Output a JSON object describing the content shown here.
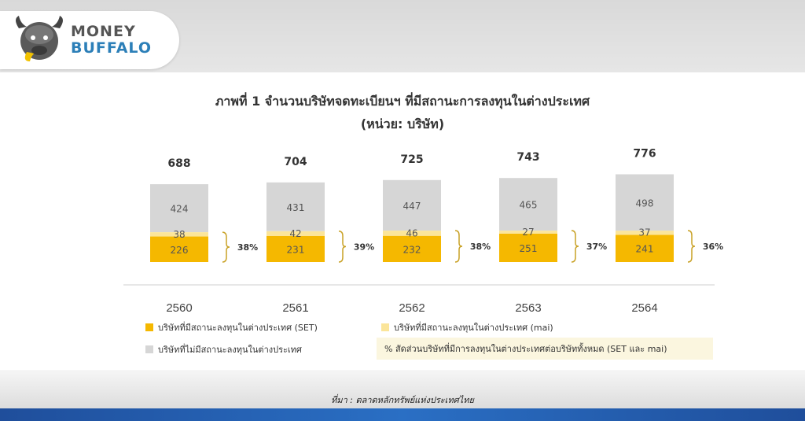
{
  "brand": {
    "line1": "MONEY",
    "line2": "BUFFALO"
  },
  "footer": {
    "source": "ที่มา : ตลาดหลักทรัพย์แห่งประเทศไทย"
  },
  "colors": {
    "set": "#f5b800",
    "mai": "#fbe59a",
    "non": "#d6d6d6",
    "pct": "#c9a227",
    "blue": "#2563b0"
  },
  "chart_data": {
    "type": "bar",
    "title": "ภาพที่ 1 จำนวนบริษัทจดทะเบียนฯ ที่มีสถานะการลงทุนในต่างประเทศ",
    "subtitle": "(หน่วย: บริษัท)",
    "categories": [
      "2560",
      "2561",
      "2562",
      "2563",
      "2564"
    ],
    "totals": [
      688,
      704,
      725,
      743,
      776
    ],
    "series": [
      {
        "name": "บริษัทที่มีสถานะลงทุนในต่างประเทศ (SET)",
        "values": [
          226,
          231,
          232,
          251,
          241
        ]
      },
      {
        "name": "บริษัทที่มีสถานะลงทุนในต่างประเทศ (mai)",
        "values": [
          38,
          42,
          46,
          27,
          37
        ]
      },
      {
        "name": "บริษัทที่ไม่มีสถานะลงทุนในต่างประเทศ",
        "values": [
          424,
          431,
          447,
          465,
          498
        ]
      }
    ],
    "percent_label": "% สัดส่วนบริษัทที่มีการลงทุนในต่างประเทศต่อบริษัททั้งหมด (SET และ mai)",
    "percentages": [
      "38%",
      "39%",
      "38%",
      "37%",
      "36%"
    ],
    "stacked": true,
    "ylim": [
      0,
      800
    ]
  }
}
